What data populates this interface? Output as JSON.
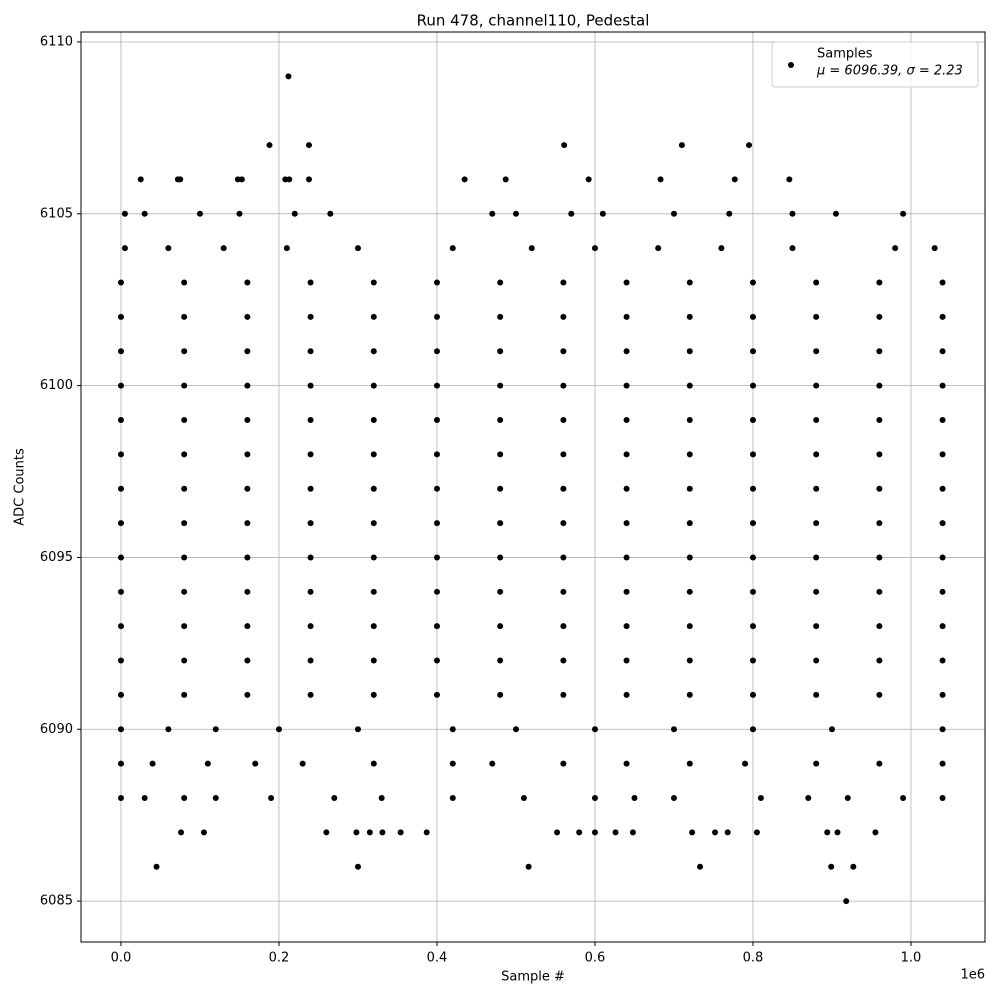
{
  "chart_data": {
    "type": "scatter",
    "title": "Run 478, channel110, Pedestal",
    "x_label": "Sample #",
    "y_label": "ADC Counts",
    "x_offset_label": "1e6",
    "xlim": [
      -50600,
      1093700
    ],
    "ylim": [
      6083.81,
      6110.29
    ],
    "xticks": [
      {
        "value": 0,
        "label": "0.0"
      },
      {
        "value": 200000,
        "label": "0.2"
      },
      {
        "value": 400000,
        "label": "0.4"
      },
      {
        "value": 600000,
        "label": "0.6"
      },
      {
        "value": 800000,
        "label": "0.8"
      },
      {
        "value": 1000000,
        "label": "1.0"
      }
    ],
    "yticks": [
      6085,
      6090,
      6095,
      6100,
      6105,
      6110
    ],
    "grid": true,
    "legend": "upper right",
    "legend_note": "μ = 6096.39, σ = 2.23",
    "series": [
      {
        "name": "Samples",
        "color": "#000000",
        "x": [
          0,
          80000,
          160000,
          240000,
          320000,
          400000,
          480000,
          560000,
          640000,
          720000,
          800000,
          880000,
          960000,
          1040000,
          0,
          80000,
          160000,
          240000,
          320000,
          400000,
          480000,
          560000,
          640000,
          720000,
          800000,
          880000,
          960000,
          1040000,
          0,
          80000,
          160000,
          240000,
          320000,
          400000,
          480000,
          560000,
          640000,
          720000,
          800000,
          880000,
          960000,
          1040000,
          0,
          80000,
          160000,
          240000,
          320000,
          400000,
          480000,
          560000,
          640000,
          720000,
          800000,
          880000,
          960000,
          1040000,
          0,
          80000,
          160000,
          240000,
          320000,
          400000,
          480000,
          560000,
          640000,
          720000,
          800000,
          880000,
          960000,
          1040000,
          0,
          80000,
          160000,
          240000,
          320000,
          400000,
          480000,
          560000,
          640000,
          720000,
          800000,
          880000,
          960000,
          1040000,
          0,
          80000,
          160000,
          240000,
          320000,
          400000,
          480000,
          560000,
          640000,
          720000,
          800000,
          880000,
          960000,
          1040000,
          0,
          80000,
          160000,
          240000,
          320000,
          400000,
          480000,
          560000,
          640000,
          720000,
          800000,
          880000,
          960000,
          1040000,
          0,
          80000,
          160000,
          240000,
          320000,
          400000,
          480000,
          560000,
          640000,
          720000,
          800000,
          880000,
          960000,
          1040000,
          0,
          80000,
          160000,
          240000,
          320000,
          400000,
          480000,
          560000,
          640000,
          720000,
          800000,
          880000,
          960000,
          1040000,
          0,
          80000,
          160000,
          240000,
          320000,
          400000,
          480000,
          560000,
          640000,
          720000,
          800000,
          880000,
          960000,
          1040000,
          0,
          80000,
          160000,
          240000,
          320000,
          400000,
          480000,
          560000,
          640000,
          720000,
          800000,
          880000,
          960000,
          1040000,
          0,
          80000,
          160000,
          240000,
          320000,
          400000,
          480000,
          560000,
          640000,
          720000,
          800000,
          880000,
          960000,
          1040000,
          0,
          60000,
          120000,
          200000,
          300000,
          420000,
          500000,
          600000,
          700000,
          800000,
          900000,
          1040000,
          5000,
          60000,
          130000,
          210000,
          300000,
          420000,
          520000,
          600000,
          680000,
          760000,
          850000,
          980000,
          1030000,
          5000,
          30000,
          100000,
          150000,
          220000,
          265000,
          470000,
          500000,
          570000,
          610000,
          700000,
          770000,
          850000,
          905000,
          990000,
          0,
          40000,
          110000,
          170000,
          230000,
          320000,
          420000,
          470000,
          560000,
          640000,
          720000,
          790000,
          880000,
          960000,
          1040000,
          0,
          30000,
          80000,
          120000,
          190000,
          270000,
          330000,
          420000,
          510000,
          600000,
          650000,
          700000,
          810000,
          870000,
          920000,
          990000,
          1040000,
          25000,
          72000,
          75000,
          148000,
          153000,
          208000,
          213000,
          238000,
          435000,
          487000,
          592000,
          683000,
          777000,
          846000,
          188000,
          238000,
          561000,
          710000,
          795000,
          212000,
          76000,
          105000,
          260000,
          298000,
          315000,
          331000,
          354000,
          387000,
          552000,
          580000,
          600000,
          626000,
          648000,
          723000,
          752000,
          768000,
          805000,
          894000,
          907000,
          955000,
          45000,
          300000,
          516000,
          733000,
          899000,
          927000,
          918000
        ],
        "values": [
          6091,
          6091,
          6091,
          6091,
          6091,
          6091,
          6091,
          6091,
          6091,
          6091,
          6091,
          6091,
          6091,
          6091,
          6092,
          6092,
          6092,
          6092,
          6092,
          6092,
          6092,
          6092,
          6092,
          6092,
          6092,
          6092,
          6092,
          6092,
          6093,
          6093,
          6093,
          6093,
          6093,
          6093,
          6093,
          6093,
          6093,
          6093,
          6093,
          6093,
          6093,
          6093,
          6094,
          6094,
          6094,
          6094,
          6094,
          6094,
          6094,
          6094,
          6094,
          6094,
          6094,
          6094,
          6094,
          6094,
          6095,
          6095,
          6095,
          6095,
          6095,
          6095,
          6095,
          6095,
          6095,
          6095,
          6095,
          6095,
          6095,
          6095,
          6096,
          6096,
          6096,
          6096,
          6096,
          6096,
          6096,
          6096,
          6096,
          6096,
          6096,
          6096,
          6096,
          6096,
          6097,
          6097,
          6097,
          6097,
          6097,
          6097,
          6097,
          6097,
          6097,
          6097,
          6097,
          6097,
          6097,
          6097,
          6098,
          6098,
          6098,
          6098,
          6098,
          6098,
          6098,
          6098,
          6098,
          6098,
          6098,
          6098,
          6098,
          6098,
          6099,
          6099,
          6099,
          6099,
          6099,
          6099,
          6099,
          6099,
          6099,
          6099,
          6099,
          6099,
          6099,
          6099,
          6100,
          6100,
          6100,
          6100,
          6100,
          6100,
          6100,
          6100,
          6100,
          6100,
          6100,
          6100,
          6100,
          6100,
          6101,
          6101,
          6101,
          6101,
          6101,
          6101,
          6101,
          6101,
          6101,
          6101,
          6101,
          6101,
          6101,
          6101,
          6102,
          6102,
          6102,
          6102,
          6102,
          6102,
          6102,
          6102,
          6102,
          6102,
          6102,
          6102,
          6102,
          6102,
          6103,
          6103,
          6103,
          6103,
          6103,
          6103,
          6103,
          6103,
          6103,
          6103,
          6103,
          6103,
          6103,
          6103,
          6090,
          6090,
          6090,
          6090,
          6090,
          6090,
          6090,
          6090,
          6090,
          6090,
          6090,
          6090,
          6104,
          6104,
          6104,
          6104,
          6104,
          6104,
          6104,
          6104,
          6104,
          6104,
          6104,
          6104,
          6104,
          6105,
          6105,
          6105,
          6105,
          6105,
          6105,
          6105,
          6105,
          6105,
          6105,
          6105,
          6105,
          6105,
          6105,
          6105,
          6089,
          6089,
          6089,
          6089,
          6089,
          6089,
          6089,
          6089,
          6089,
          6089,
          6089,
          6089,
          6089,
          6089,
          6089,
          6088,
          6088,
          6088,
          6088,
          6088,
          6088,
          6088,
          6088,
          6088,
          6088,
          6088,
          6088,
          6088,
          6088,
          6088,
          6088,
          6088,
          6106,
          6106,
          6106,
          6106,
          6106,
          6106,
          6106,
          6106,
          6106,
          6106,
          6106,
          6106,
          6106,
          6106,
          6107,
          6107,
          6107,
          6107,
          6107,
          6109,
          6087,
          6087,
          6087,
          6087,
          6087,
          6087,
          6087,
          6087,
          6087,
          6087,
          6087,
          6087,
          6087,
          6087,
          6087,
          6087,
          6087,
          6087,
          6087,
          6087,
          6086,
          6086,
          6086,
          6086,
          6086,
          6086,
          6085
        ]
      }
    ]
  }
}
